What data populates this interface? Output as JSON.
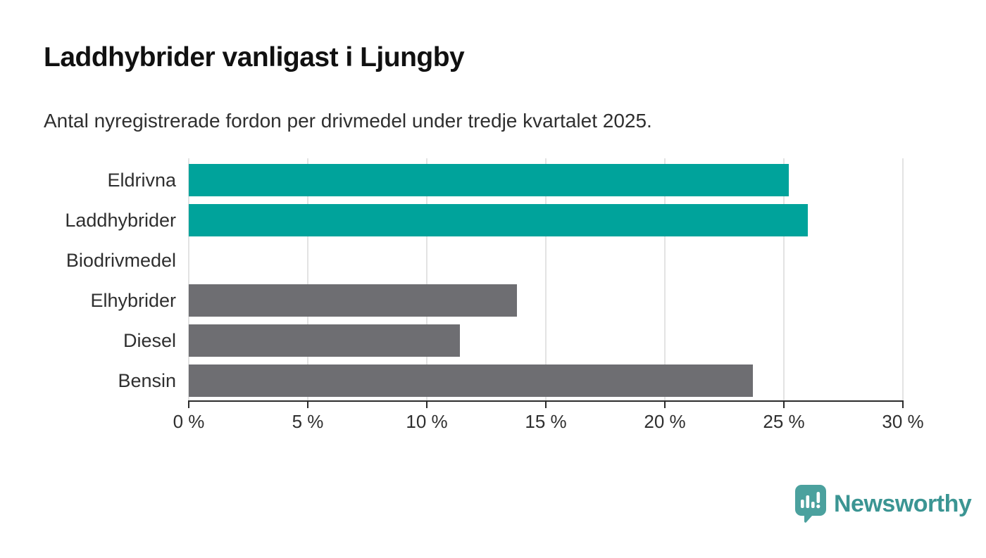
{
  "chart_data": {
    "type": "bar",
    "orientation": "horizontal",
    "title": "Laddhybrider vanligast i Ljungby",
    "subtitle": "Antal nyregistrerade fordon per drivmedel under tredje kvartalet 2025.",
    "categories": [
      "Eldrivna",
      "Laddhybrider",
      "Biodrivmedel",
      "Elhybrider",
      "Diesel",
      "Bensin"
    ],
    "values": [
      25.2,
      26.0,
      0,
      13.8,
      11.4,
      23.7
    ],
    "bar_colors": [
      "teal",
      "teal",
      "teal",
      "gray",
      "gray",
      "gray"
    ],
    "xlabel": "",
    "ylabel": "",
    "xlim": [
      0,
      30
    ],
    "ticks": [
      0,
      5,
      10,
      15,
      20,
      25,
      30
    ],
    "tick_suffix": " %",
    "grid": "vertical-only",
    "legend": "none"
  },
  "colors": {
    "teal": "#00a39b",
    "gray": "#6e6e72",
    "grid": "#e3e3e3",
    "axis": "#2b2b2b",
    "title": "#111111",
    "text": "#2f2f2f",
    "brand_icon": "#4ba19e",
    "brand_text": "#3b9593"
  },
  "footer": {
    "brand": "Newsworthy"
  }
}
